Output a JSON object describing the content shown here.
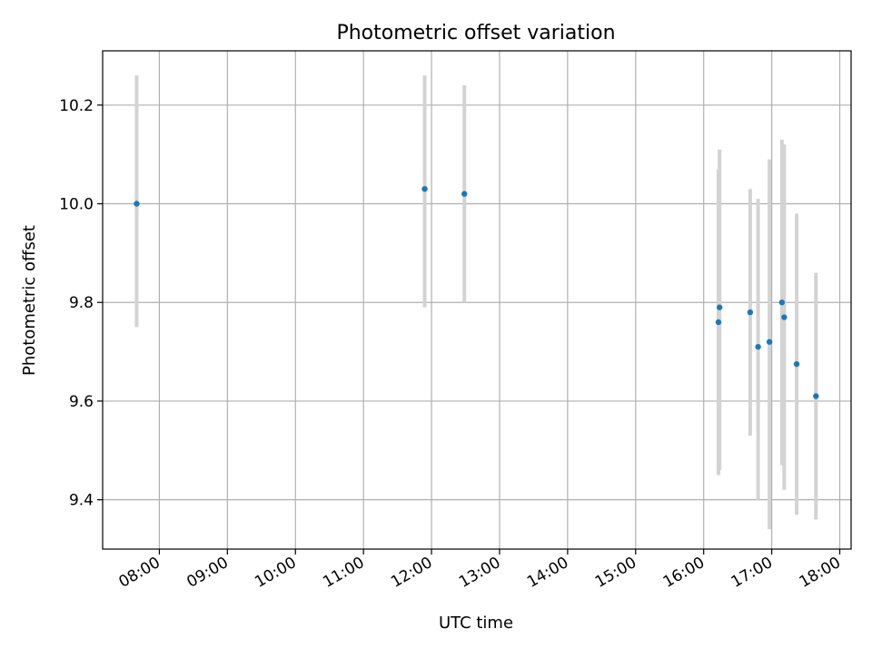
{
  "chart_data": {
    "type": "scatter",
    "title": "Photometric offset variation",
    "xlabel": "UTC time",
    "ylabel": "Photometric offset",
    "x_axis_kind": "time",
    "xlim": [
      "07:10",
      "18:10"
    ],
    "ylim": [
      9.3,
      10.31
    ],
    "x_ticks": [
      "08:00",
      "09:00",
      "10:00",
      "11:00",
      "12:00",
      "13:00",
      "14:00",
      "15:00",
      "16:00",
      "17:00",
      "18:00"
    ],
    "y_ticks": [
      "9.4",
      "9.6",
      "9.8",
      "10.0",
      "10.2"
    ],
    "y_tick_values": [
      9.4,
      9.6,
      9.8,
      10.0,
      10.2
    ],
    "grid": true,
    "colors": {
      "marker": "#1f77b4",
      "errorbar": "#d3d3d3",
      "grid": "#b0b0b0"
    },
    "points": [
      {
        "x": "07:40",
        "y": 10.0,
        "ylow": 9.75,
        "yhigh": 10.26
      },
      {
        "x": "11:54",
        "y": 10.03,
        "ylow": 9.79,
        "yhigh": 10.26
      },
      {
        "x": "12:29",
        "y": 10.02,
        "ylow": 9.8,
        "yhigh": 10.24
      },
      {
        "x": "16:13",
        "y": 9.76,
        "ylow": 9.45,
        "yhigh": 10.07
      },
      {
        "x": "16:14",
        "y": 9.79,
        "ylow": 9.46,
        "yhigh": 10.11
      },
      {
        "x": "16:41",
        "y": 9.78,
        "ylow": 9.53,
        "yhigh": 10.03
      },
      {
        "x": "16:48",
        "y": 9.71,
        "ylow": 9.4,
        "yhigh": 10.01
      },
      {
        "x": "16:58",
        "y": 9.72,
        "ylow": 9.34,
        "yhigh": 10.09
      },
      {
        "x": "17:09",
        "y": 9.8,
        "ylow": 9.47,
        "yhigh": 10.13
      },
      {
        "x": "17:11",
        "y": 9.77,
        "ylow": 9.42,
        "yhigh": 10.12
      },
      {
        "x": "17:22",
        "y": 9.675,
        "ylow": 9.37,
        "yhigh": 9.98
      },
      {
        "x": "17:39",
        "y": 9.61,
        "ylow": 9.36,
        "yhigh": 9.86
      }
    ]
  }
}
